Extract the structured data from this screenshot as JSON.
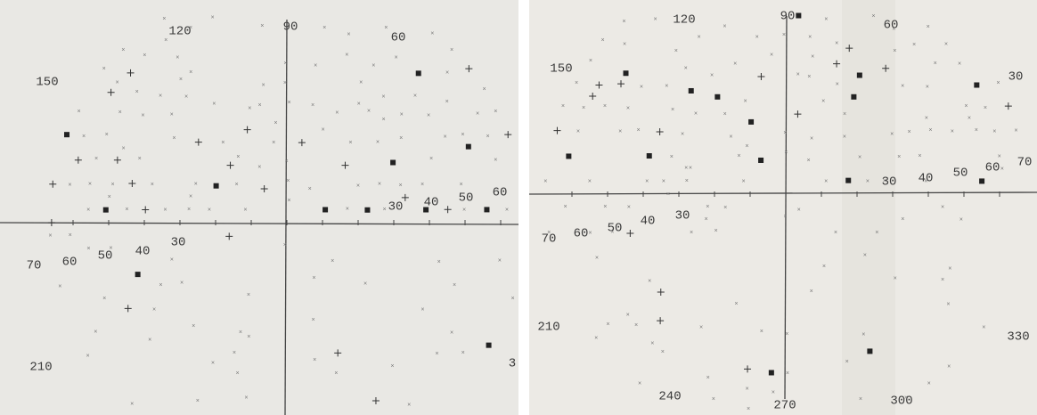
{
  "left_plot": {
    "labels": [
      "120",
      "90",
      "60",
      "150",
      "30",
      "40",
      "50",
      "60",
      "70",
      "60",
      "50",
      "40",
      "30",
      "210",
      "3"
    ]
  },
  "right_plot": {
    "labels": [
      "120",
      "90",
      "60",
      "150",
      "30",
      "30",
      "40",
      "50",
      "60",
      "70",
      "70",
      "60",
      "50",
      "40",
      "30",
      "210",
      "330",
      "240",
      "270",
      "300"
    ]
  }
}
